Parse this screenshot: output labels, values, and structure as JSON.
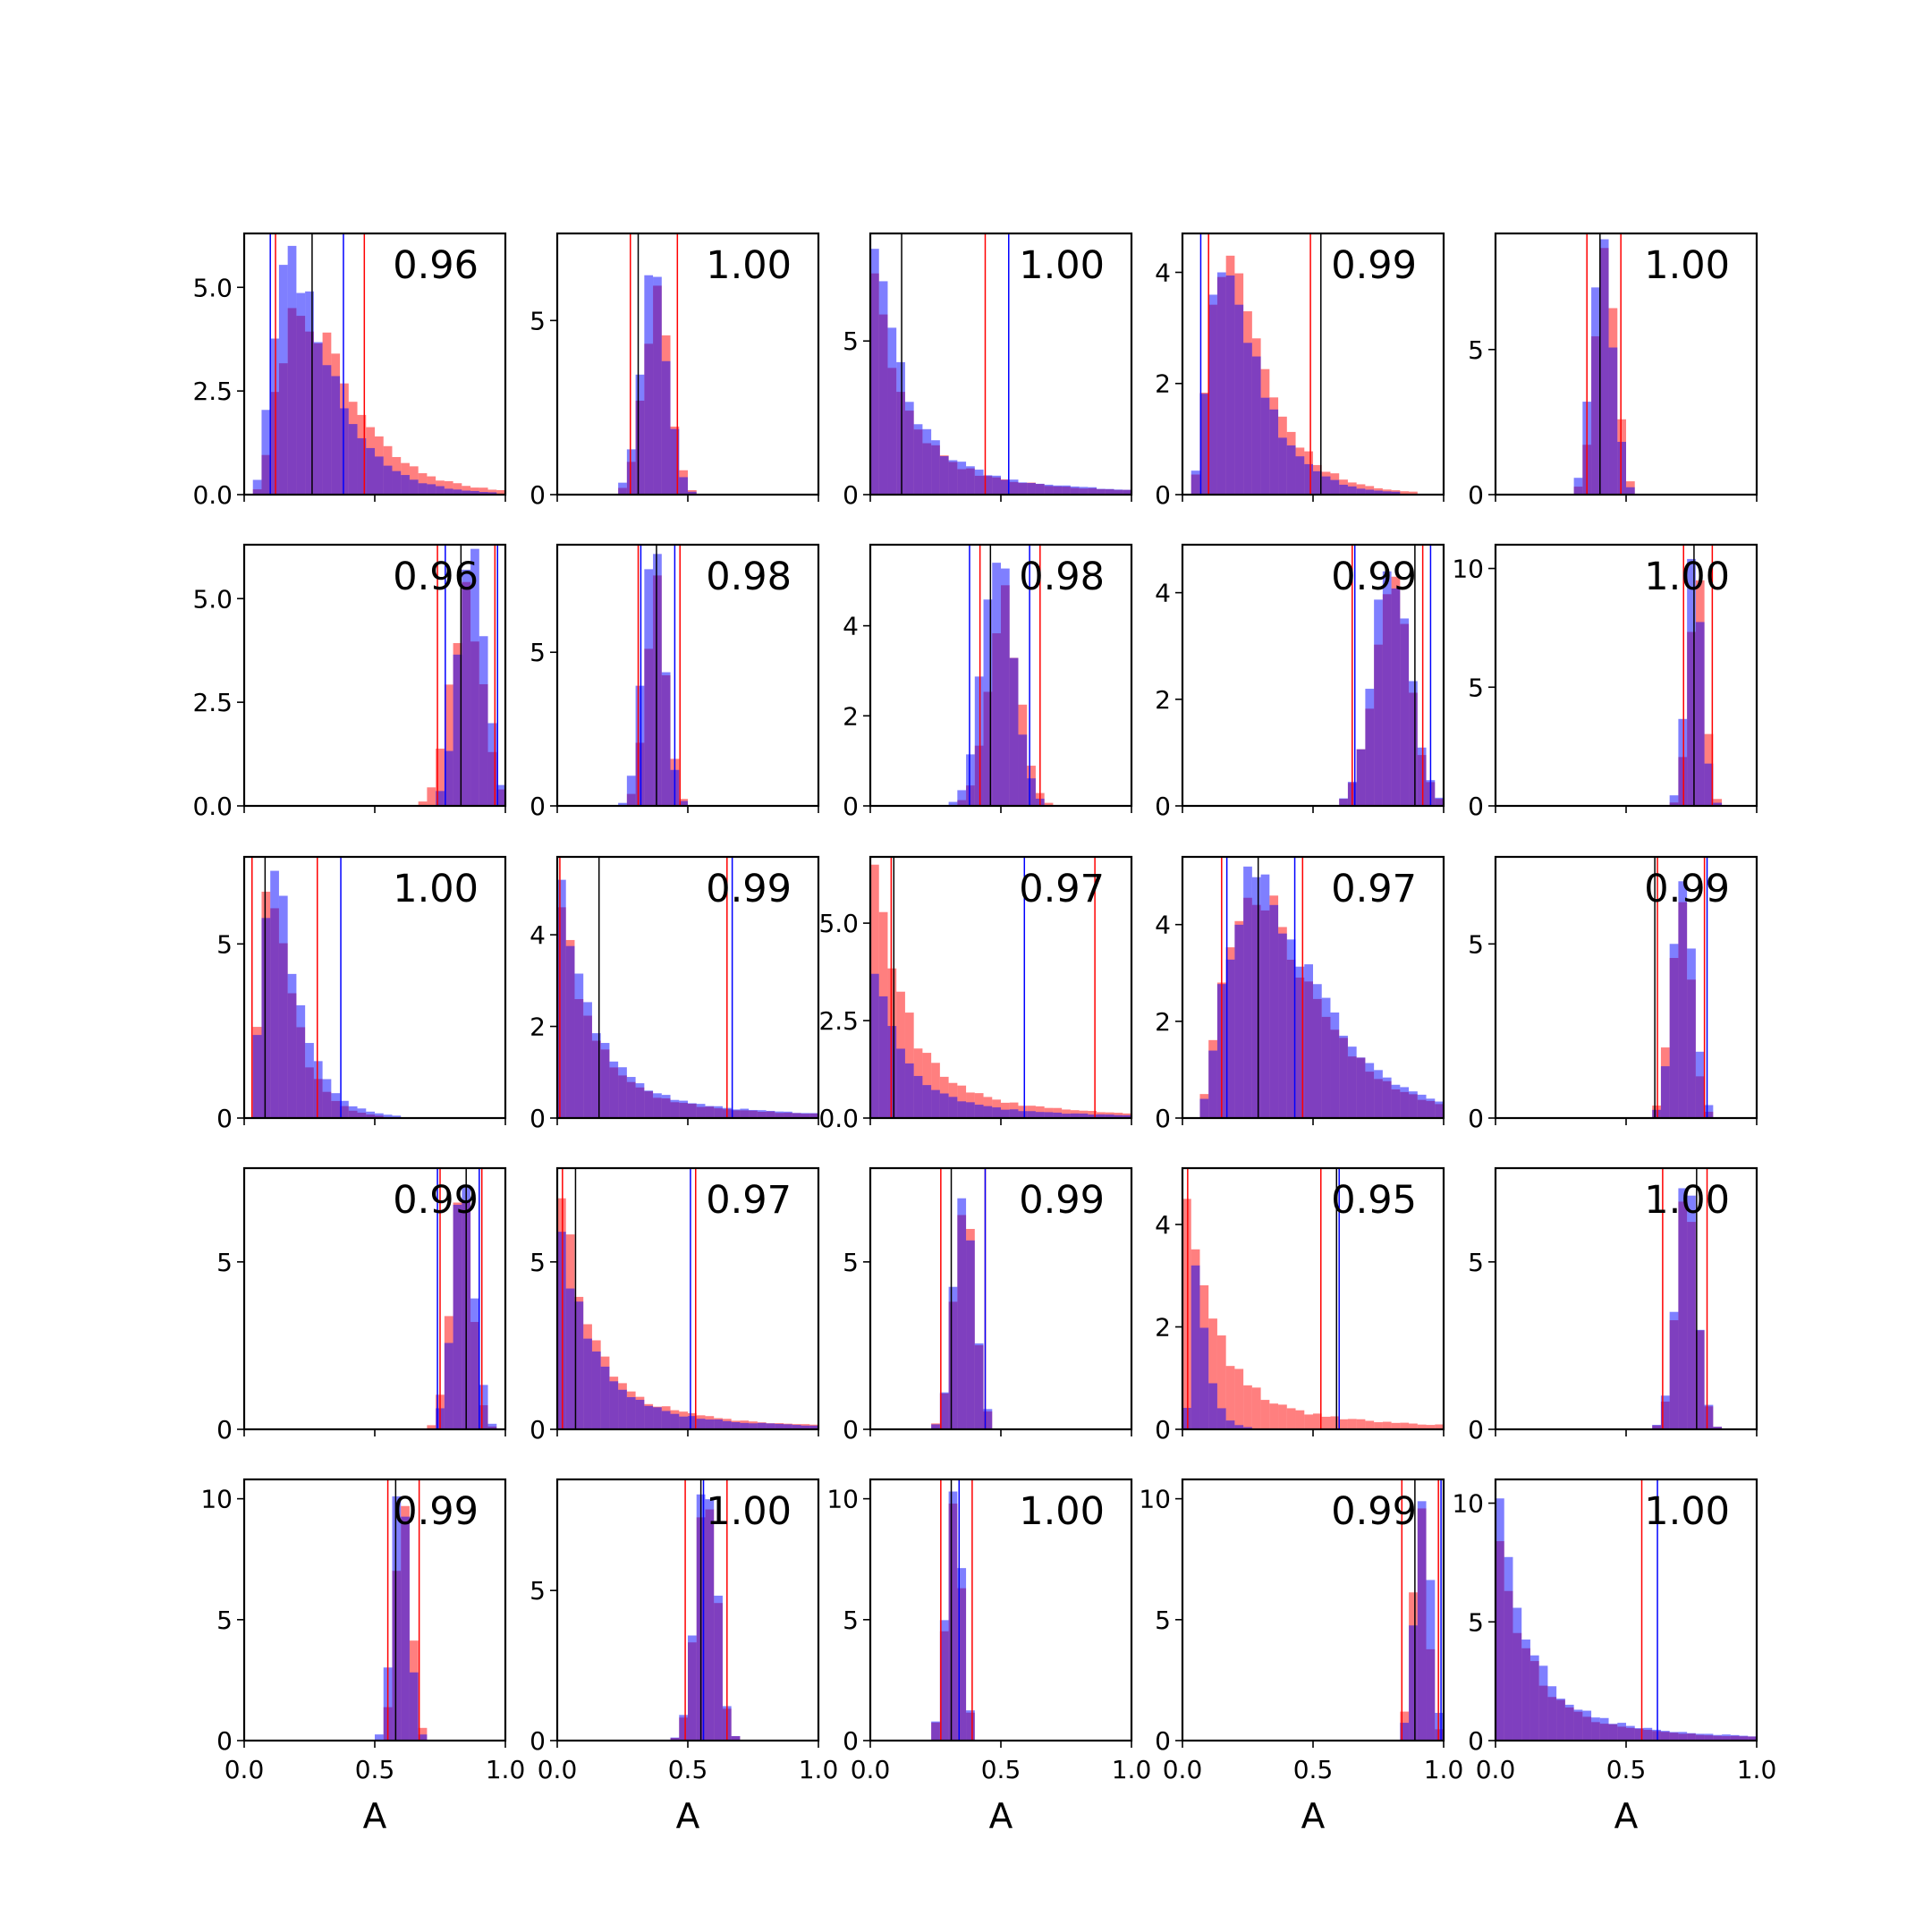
{
  "figure": {
    "xlabel": "A",
    "colors": {
      "red": "#ff0000",
      "blue": "#0000ff",
      "black": "#000000",
      "axes": "#000000"
    }
  },
  "chart_data": [
    {
      "type": "bar",
      "row": 0,
      "col": 0,
      "corr": "0.96",
      "xlim": [
        0,
        1
      ],
      "yticks": [
        "0.0",
        "2.5",
        "5.0"
      ],
      "ytick_values": [
        0,
        2.5,
        5
      ],
      "ymax": 6.3,
      "red_dist": {
        "shape": "lognormal",
        "mode": 0.22,
        "peak": 4.5,
        "tail_heavy": true
      },
      "blue_dist": {
        "shape": "lognormal",
        "mode": 0.18,
        "peak": 6.0
      },
      "red_lines": [
        0.12,
        0.46
      ],
      "blue_lines": [
        0.1,
        0.38
      ],
      "black_lines": [
        0.26
      ]
    },
    {
      "type": "bar",
      "row": 0,
      "col": 1,
      "corr": "1.00",
      "xlim": [
        0,
        1
      ],
      "yticks": [
        "0",
        "5"
      ],
      "ytick_values": [
        0,
        5
      ],
      "ymax": 7.5,
      "red_dist": {
        "shape": "normal",
        "mean": 0.38,
        "sd": 0.05,
        "peak": 6.0
      },
      "blue_dist": {
        "shape": "normal",
        "mean": 0.37,
        "sd": 0.05,
        "peak": 6.3
      },
      "red_lines": [
        0.28,
        0.46
      ],
      "blue_lines": [],
      "black_lines": [
        0.31
      ]
    },
    {
      "type": "bar",
      "row": 0,
      "col": 2,
      "corr": "1.00",
      "xlim": [
        0,
        1
      ],
      "yticks": [
        "0",
        "5"
      ],
      "ytick_values": [
        0,
        5
      ],
      "ymax": 8.5,
      "red_dist": {
        "shape": "exponential",
        "peak": 7.2
      },
      "blue_dist": {
        "shape": "exponential",
        "peak": 8.0
      },
      "red_lines": [
        0.44
      ],
      "blue_lines": [
        0.53
      ],
      "black_lines": [
        0.12
      ]
    },
    {
      "type": "bar",
      "row": 0,
      "col": 3,
      "corr": "0.99",
      "xlim": [
        0,
        1
      ],
      "yticks": [
        "0",
        "2",
        "4"
      ],
      "ytick_values": [
        0,
        2,
        4
      ],
      "ymax": 4.7,
      "red_dist": {
        "shape": "lognormal",
        "mode": 0.17,
        "peak": 4.3
      },
      "blue_dist": {
        "shape": "lognormal",
        "mode": 0.16,
        "peak": 4.0
      },
      "red_lines": [
        0.1,
        0.49
      ],
      "blue_lines": [
        0.07,
        0.53
      ],
      "black_lines": [
        0.53
      ]
    },
    {
      "type": "bar",
      "row": 0,
      "col": 4,
      "corr": "1.00",
      "xlim": [
        0,
        1
      ],
      "yticks": [
        "0",
        "5"
      ],
      "ytick_values": [
        0,
        5
      ],
      "ymax": 9.0,
      "red_dist": {
        "shape": "normal",
        "mean": 0.42,
        "sd": 0.04,
        "peak": 8.5
      },
      "blue_dist": {
        "shape": "normal",
        "mean": 0.41,
        "sd": 0.04,
        "peak": 8.8
      },
      "red_lines": [
        0.35,
        0.48
      ],
      "blue_lines": [],
      "black_lines": [
        0.4
      ]
    },
    {
      "type": "bar",
      "row": 1,
      "col": 0,
      "corr": "0.96",
      "xlim": [
        0,
        1
      ],
      "yticks": [
        "0.0",
        "2.5",
        "5.0"
      ],
      "ytick_values": [
        0,
        2.5,
        5
      ],
      "ymax": 6.3,
      "red_dist": {
        "shape": "normal",
        "mean": 0.85,
        "sd": 0.06,
        "peak": 5.4
      },
      "blue_dist": {
        "shape": "normal",
        "mean": 0.87,
        "sd": 0.05,
        "peak": 6.2
      },
      "red_lines": [
        0.74,
        0.96
      ],
      "blue_lines": [
        0.77,
        0.97
      ],
      "black_lines": [
        0.83
      ]
    },
    {
      "type": "bar",
      "row": 1,
      "col": 1,
      "corr": "0.98",
      "xlim": [
        0,
        1
      ],
      "yticks": [
        "0",
        "5"
      ],
      "ytick_values": [
        0,
        5
      ],
      "ymax": 8.5,
      "red_dist": {
        "shape": "normal",
        "mean": 0.38,
        "sd": 0.04,
        "peak": 7.5
      },
      "blue_dist": {
        "shape": "normal",
        "mean": 0.37,
        "sd": 0.04,
        "peak": 8.2
      },
      "red_lines": [
        0.31,
        0.47
      ],
      "blue_lines": [
        0.32,
        0.45
      ],
      "black_lines": [
        0.38
      ]
    },
    {
      "type": "bar",
      "row": 1,
      "col": 2,
      "corr": "0.98",
      "xlim": [
        0,
        1
      ],
      "yticks": [
        "0",
        "2",
        "4"
      ],
      "ytick_values": [
        0,
        2,
        4
      ],
      "ymax": 5.8,
      "red_dist": {
        "shape": "normal",
        "mean": 0.51,
        "sd": 0.06,
        "peak": 4.9
      },
      "blue_dist": {
        "shape": "normal",
        "mean": 0.49,
        "sd": 0.06,
        "peak": 5.4
      },
      "red_lines": [
        0.42,
        0.65
      ],
      "blue_lines": [
        0.38,
        0.61
      ],
      "black_lines": [
        0.46
      ]
    },
    {
      "type": "bar",
      "row": 1,
      "col": 3,
      "corr": "0.99",
      "xlim": [
        0,
        1
      ],
      "yticks": [
        "0",
        "2",
        "4"
      ],
      "ytick_values": [
        0,
        2,
        4
      ],
      "ymax": 4.9,
      "red_dist": {
        "shape": "normal",
        "mean": 0.8,
        "sd": 0.07,
        "peak": 4.3
      },
      "blue_dist": {
        "shape": "normal",
        "mean": 0.8,
        "sd": 0.07,
        "peak": 4.4
      },
      "red_lines": [
        0.65,
        0.92
      ],
      "blue_lines": [
        0.66,
        0.95
      ],
      "black_lines": [
        0.89
      ]
    },
    {
      "type": "bar",
      "row": 1,
      "col": 4,
      "corr": "1.00",
      "xlim": [
        0,
        1
      ],
      "yticks": [
        "0",
        "5",
        "10"
      ],
      "ytick_values": [
        0,
        5,
        10
      ],
      "ymax": 11.0,
      "red_dist": {
        "shape": "normal",
        "mean": 0.77,
        "sd": 0.03,
        "peak": 9.5
      },
      "blue_dist": {
        "shape": "normal",
        "mean": 0.76,
        "sd": 0.03,
        "peak": 10.4
      },
      "red_lines": [
        0.72,
        0.83
      ],
      "blue_lines": [],
      "black_lines": [
        0.76
      ]
    },
    {
      "type": "bar",
      "row": 2,
      "col": 0,
      "corr": "1.00",
      "xlim": [
        0,
        1
      ],
      "yticks": [
        "0",
        "5"
      ],
      "ytick_values": [
        0,
        5
      ],
      "ymax": 7.5,
      "red_dist": {
        "shape": "lognormal",
        "mode": 0.1,
        "peak": 6.5
      },
      "blue_dist": {
        "shape": "lognormal",
        "mode": 0.11,
        "peak": 7.1
      },
      "red_lines": [
        0.03,
        0.28
      ],
      "blue_lines": [
        0.37
      ],
      "black_lines": [
        0.08
      ]
    },
    {
      "type": "bar",
      "row": 2,
      "col": 1,
      "corr": "0.99",
      "xlim": [
        0,
        1
      ],
      "yticks": [
        "0",
        "2",
        "4"
      ],
      "ytick_values": [
        0,
        2,
        4
      ],
      "ymax": 5.7,
      "red_dist": {
        "shape": "exponential",
        "peak": 4.6
      },
      "blue_dist": {
        "shape": "exponential",
        "peak": 5.2
      },
      "red_lines": [
        0.01,
        0.65
      ],
      "blue_lines": [
        0.67
      ],
      "black_lines": [
        0.16
      ]
    },
    {
      "type": "bar",
      "row": 2,
      "col": 2,
      "corr": "0.97",
      "xlim": [
        0,
        1
      ],
      "yticks": [
        "0.0",
        "2.5",
        "5.0"
      ],
      "ytick_values": [
        0,
        2.5,
        5
      ],
      "ymax": 6.7,
      "red_dist": {
        "shape": "exponential",
        "peak": 6.5
      },
      "blue_dist": {
        "shape": "exponential",
        "peak": 3.7
      },
      "red_lines": [
        0.08,
        0.86
      ],
      "blue_lines": [
        0.59
      ],
      "black_lines": [
        0.09
      ]
    },
    {
      "type": "bar",
      "row": 2,
      "col": 3,
      "corr": "0.97",
      "xlim": [
        0,
        1
      ],
      "yticks": [
        "0",
        "2",
        "4"
      ],
      "ytick_values": [
        0,
        2,
        4
      ],
      "ymax": 5.4,
      "red_dist": {
        "shape": "lognormal",
        "mode": 0.27,
        "peak": 4.6
      },
      "blue_dist": {
        "shape": "lognormal",
        "mode": 0.28,
        "peak": 5.2
      },
      "red_lines": [
        0.15,
        0.46
      ],
      "blue_lines": [
        0.17,
        0.43
      ],
      "black_lines": [
        0.29
      ]
    },
    {
      "type": "bar",
      "row": 2,
      "col": 4,
      "corr": "0.99",
      "xlim": [
        0,
        1
      ],
      "yticks": [
        "0",
        "5"
      ],
      "ytick_values": [
        0,
        5
      ],
      "ymax": 7.5,
      "red_dist": {
        "shape": "normal",
        "mean": 0.71,
        "sd": 0.04,
        "peak": 6.2
      },
      "blue_dist": {
        "shape": "normal",
        "mean": 0.72,
        "sd": 0.04,
        "peak": 6.8
      },
      "red_lines": [
        0.62,
        0.8
      ],
      "blue_lines": [
        0.81
      ],
      "black_lines": [
        0.61
      ]
    },
    {
      "type": "bar",
      "row": 3,
      "col": 0,
      "corr": "0.99",
      "xlim": [
        0,
        1
      ],
      "yticks": [
        "0",
        "5"
      ],
      "ytick_values": [
        0,
        5
      ],
      "ymax": 7.8,
      "red_dist": {
        "shape": "normal",
        "mean": 0.83,
        "sd": 0.04,
        "peak": 6.8
      },
      "blue_dist": {
        "shape": "normal",
        "mean": 0.84,
        "sd": 0.04,
        "peak": 7.3
      },
      "red_lines": [
        0.75,
        0.91
      ],
      "blue_lines": [
        0.74,
        0.9
      ],
      "black_lines": [
        0.85
      ]
    },
    {
      "type": "bar",
      "row": 3,
      "col": 1,
      "corr": "0.97",
      "xlim": [
        0,
        1
      ],
      "yticks": [
        "0",
        "5"
      ],
      "ytick_values": [
        0,
        5
      ],
      "ymax": 7.8,
      "red_dist": {
        "shape": "exponential",
        "peak": 6.9
      },
      "blue_dist": {
        "shape": "exponential",
        "peak": 5.9
      },
      "red_lines": [
        0.02,
        0.53
      ],
      "blue_lines": [
        0.51
      ],
      "black_lines": [
        0.07
      ]
    },
    {
      "type": "bar",
      "row": 3,
      "col": 2,
      "corr": "0.99",
      "xlim": [
        0,
        1
      ],
      "yticks": [
        "0",
        "5"
      ],
      "ytick_values": [
        0,
        5
      ],
      "ymax": 7.8,
      "red_dist": {
        "shape": "normal",
        "mean": 0.36,
        "sd": 0.04,
        "peak": 6.4
      },
      "blue_dist": {
        "shape": "normal",
        "mean": 0.36,
        "sd": 0.04,
        "peak": 6.9
      },
      "red_lines": [
        0.27,
        0.44
      ],
      "blue_lines": [
        0.44
      ],
      "black_lines": [
        0.31
      ]
    },
    {
      "type": "bar",
      "row": 3,
      "col": 3,
      "corr": "0.95",
      "xlim": [
        0,
        1
      ],
      "yticks": [
        "0",
        "2",
        "4"
      ],
      "ytick_values": [
        0,
        2,
        4
      ],
      "ymax": 5.1,
      "red_dist": {
        "shape": "exponential",
        "peak": 4.5
      },
      "blue_dist": {
        "shape": "lognormal",
        "mode": 0.05,
        "peak": 3.2
      },
      "red_lines": [
        0.02,
        0.53
      ],
      "blue_lines": [
        0.6
      ],
      "black_lines": [
        0.59
      ]
    },
    {
      "type": "bar",
      "row": 3,
      "col": 4,
      "corr": "1.00",
      "xlim": [
        0,
        1
      ],
      "yticks": [
        "0",
        "5"
      ],
      "ytick_values": [
        0,
        5
      ],
      "ymax": 7.8,
      "red_dist": {
        "shape": "normal",
        "mean": 0.73,
        "sd": 0.04,
        "peak": 6.8
      },
      "blue_dist": {
        "shape": "normal",
        "mean": 0.73,
        "sd": 0.04,
        "peak": 7.2
      },
      "red_lines": [
        0.64,
        0.81
      ],
      "blue_lines": [],
      "black_lines": [
        0.77
      ]
    },
    {
      "type": "bar",
      "row": 4,
      "col": 0,
      "corr": "0.99",
      "xlim": [
        0,
        1
      ],
      "yticks": [
        "0",
        "5",
        "10"
      ],
      "ytick_values": [
        0,
        5,
        10
      ],
      "ymax": 10.8,
      "red_dist": {
        "shape": "normal",
        "mean": 0.61,
        "sd": 0.03,
        "peak": 9.7
      },
      "blue_dist": {
        "shape": "normal",
        "mean": 0.6,
        "sd": 0.03,
        "peak": 10.1
      },
      "red_lines": [
        0.55,
        0.67
      ],
      "blue_lines": [],
      "black_lines": [
        0.58
      ]
    },
    {
      "type": "bar",
      "row": 4,
      "col": 1,
      "corr": "1.00",
      "xlim": [
        0,
        1
      ],
      "yticks": [
        "0",
        "5"
      ],
      "ytick_values": [
        0,
        5
      ],
      "ymax": 8.7,
      "red_dist": {
        "shape": "normal",
        "mean": 0.57,
        "sd": 0.04,
        "peak": 7.7
      },
      "blue_dist": {
        "shape": "normal",
        "mean": 0.57,
        "sd": 0.04,
        "peak": 8.2
      },
      "red_lines": [
        0.49,
        0.65
      ],
      "blue_lines": [
        0.56
      ],
      "black_lines": [
        0.55
      ]
    },
    {
      "type": "bar",
      "row": 4,
      "col": 2,
      "corr": "1.00",
      "xlim": [
        0,
        1
      ],
      "yticks": [
        "0",
        "5",
        "10"
      ],
      "ytick_values": [
        0,
        5,
        10
      ],
      "ymax": 10.8,
      "red_dist": {
        "shape": "normal",
        "mean": 0.32,
        "sd": 0.03,
        "peak": 9.8
      },
      "blue_dist": {
        "shape": "normal",
        "mean": 0.32,
        "sd": 0.03,
        "peak": 10.3
      },
      "red_lines": [
        0.27,
        0.39
      ],
      "blue_lines": [
        0.34
      ],
      "black_lines": [
        0.31
      ]
    },
    {
      "type": "bar",
      "row": 4,
      "col": 3,
      "corr": "0.99",
      "xlim": [
        0,
        1
      ],
      "yticks": [
        "0",
        "5",
        "10"
      ],
      "ytick_values": [
        0,
        5,
        10
      ],
      "ymax": 10.8,
      "red_dist": {
        "shape": "normal",
        "mean": 0.91,
        "sd": 0.03,
        "peak": 9.6
      },
      "blue_dist": {
        "shape": "normal",
        "mean": 0.92,
        "sd": 0.03,
        "peak": 9.9
      },
      "red_lines": [
        0.84,
        0.98
      ],
      "blue_lines": [
        0.99
      ],
      "black_lines": [
        0.89
      ]
    },
    {
      "type": "bar",
      "row": 4,
      "col": 4,
      "corr": "1.00",
      "xlim": [
        0,
        1
      ],
      "yticks": [
        "0",
        "5",
        "10"
      ],
      "ytick_values": [
        0,
        5,
        10
      ],
      "ymax": 11.0,
      "red_dist": {
        "shape": "exponential",
        "peak": 8.4
      },
      "blue_dist": {
        "shape": "exponential",
        "peak": 10.2
      },
      "red_lines": [
        0.56
      ],
      "blue_lines": [
        0.62
      ],
      "black_lines": []
    }
  ],
  "xticks": [
    "0.0",
    "0.5",
    "1.0"
  ],
  "xtick_values": [
    0,
    0.5,
    1
  ]
}
